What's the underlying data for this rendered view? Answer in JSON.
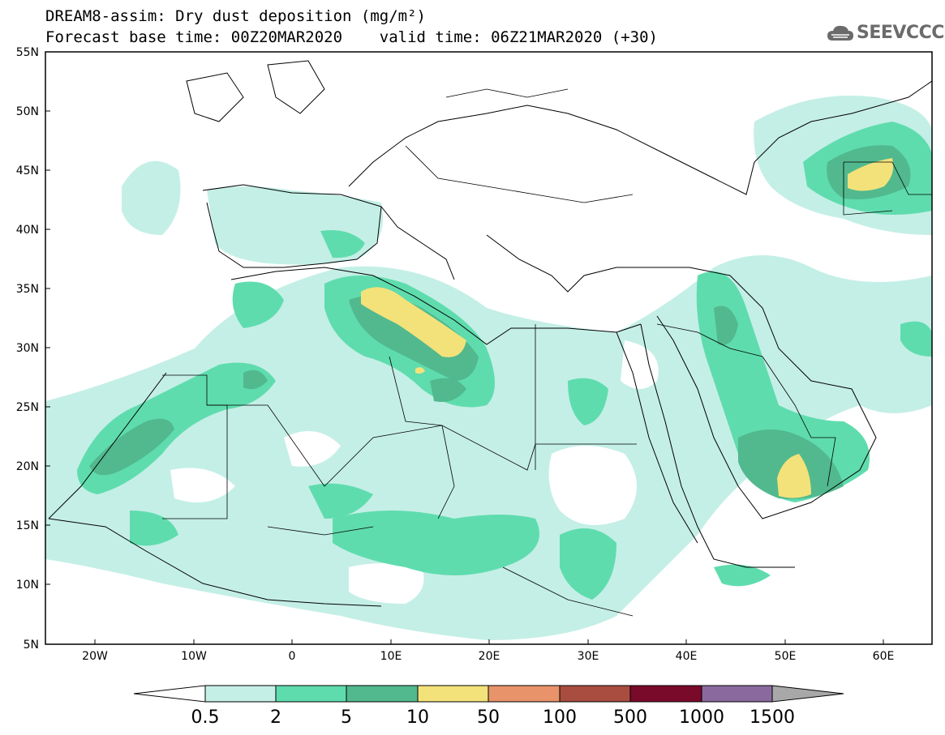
{
  "header": {
    "title_line1": "DREAM8-assim: Dry dust deposition (mg/m²)",
    "title_line2": "Forecast base time: 00Z20MAR2020    valid time: 06Z21MAR2020 (+30)",
    "logo_text": "SEEVCCC"
  },
  "map": {
    "lat_labels": [
      "55N",
      "50N",
      "45N",
      "40N",
      "35N",
      "30N",
      "25N",
      "20N",
      "15N",
      "10N",
      "5N"
    ],
    "lon_labels": [
      "20W",
      "10W",
      "0",
      "10E",
      "20E",
      "30E",
      "40E",
      "50E",
      "60E"
    ]
  },
  "colorbar": {
    "labels": [
      "0.5",
      "2",
      "5",
      "10",
      "50",
      "100",
      "500",
      "1000",
      "1500"
    ],
    "colors": [
      "#c4efe6",
      "#5fdcae",
      "#52b98e",
      "#f3e27a",
      "#e8936a",
      "#a84d3f",
      "#7a0a2a",
      "#8a6a9e",
      "#a8a8a8"
    ]
  },
  "colors": {
    "level_0_5": "#c4efe6",
    "level_2": "#5fdcae",
    "level_5": "#52b98e",
    "level_10": "#f3e27a"
  }
}
